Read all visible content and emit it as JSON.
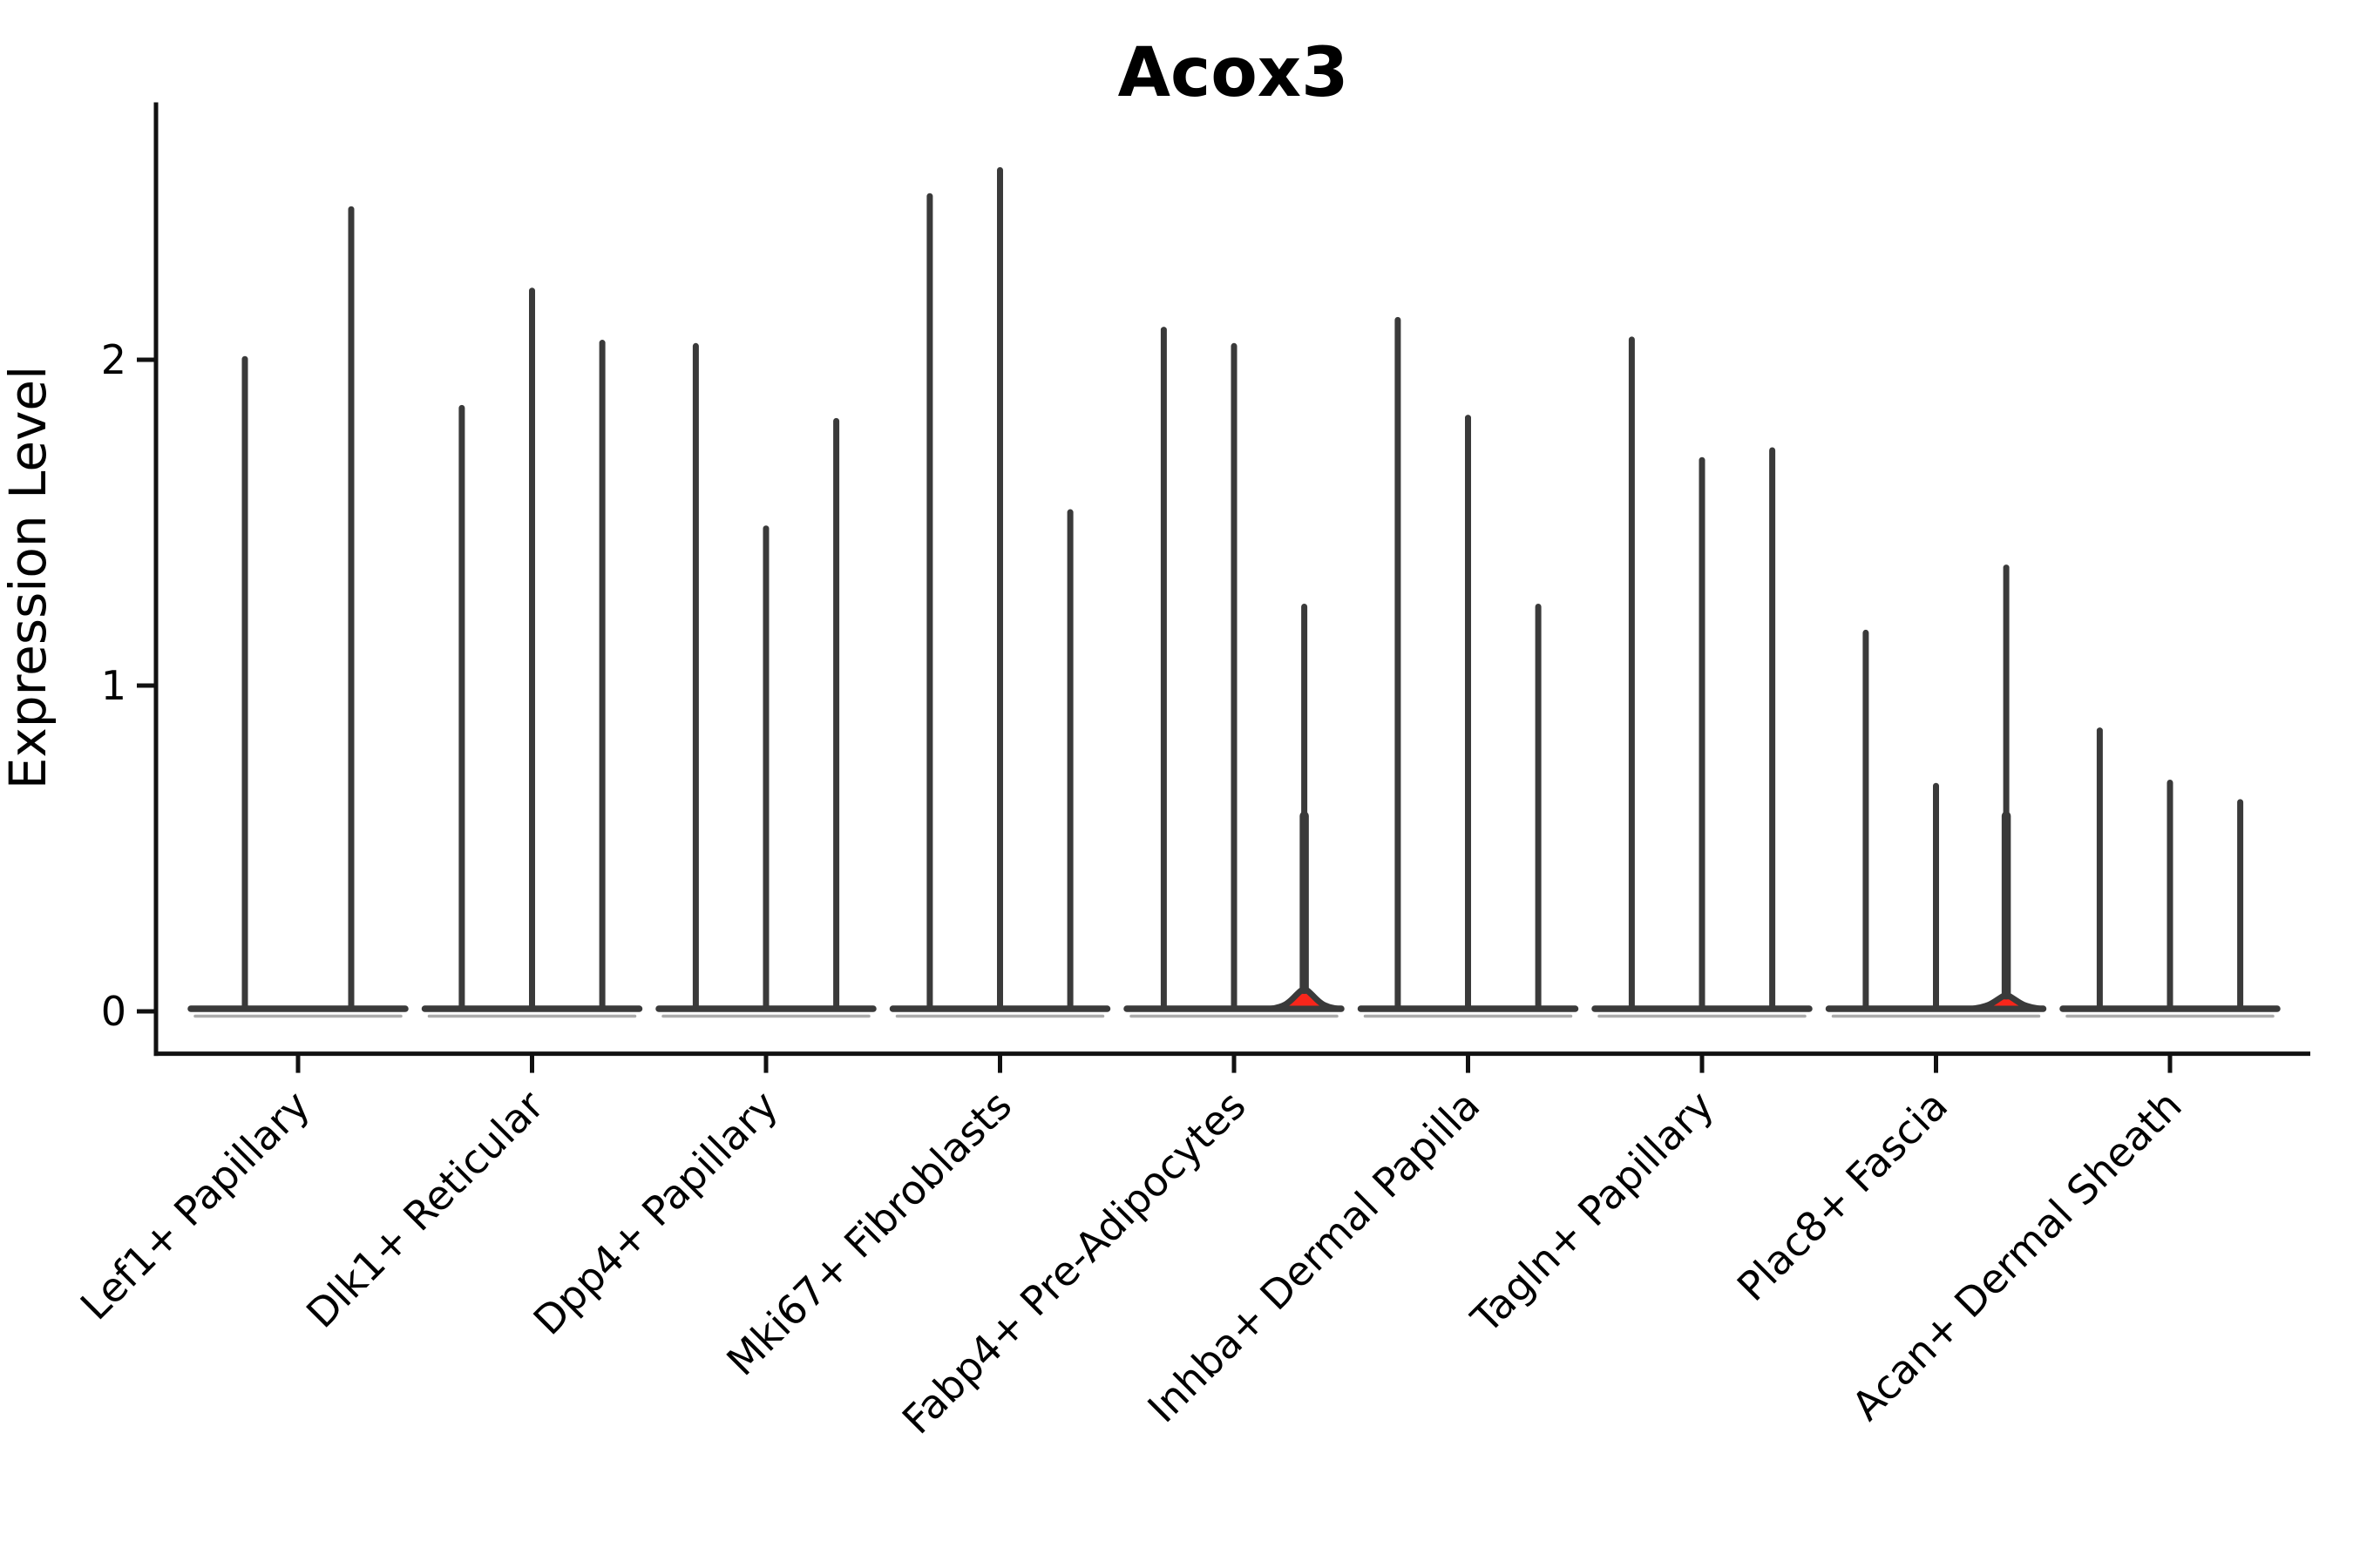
{
  "chart_data": {
    "type": "violin",
    "title": "Acox3",
    "ylabel": "Expression Level",
    "xlabel": "",
    "yticks": [
      0,
      1,
      2
    ],
    "ylim": [
      -0.13,
      2.79
    ],
    "grid": false,
    "legend": false,
    "note": "Seurat-style violin plot; each cluster shows 2-3 very thin violins with nearly all density at 0 (flat base blob) and a thin stem rising to the max expression value. Two violins show a visible red-filled density blob at the bottom.",
    "colors": {
      "violin_outline": "#3A3A3A",
      "highlight_fill": "#F8261B",
      "base_shadow": "#ABABAB",
      "axis": "#111111",
      "text": "#000000"
    },
    "groups": [
      {
        "label": "Lef1+ Papillary",
        "violin_maxima": [
          2.01,
          2.47
        ],
        "highlighted_violin": null
      },
      {
        "label": "Dlk1+ Reticular",
        "violin_maxima": [
          1.86,
          2.22,
          2.06
        ],
        "highlighted_violin": null
      },
      {
        "label": "Dpp4+ Papillary",
        "violin_maxima": [
          2.05,
          1.49,
          1.82
        ],
        "highlighted_violin": null
      },
      {
        "label": "Mki67+ Fibroblasts",
        "violin_maxima": [
          2.51,
          2.59,
          1.54
        ],
        "highlighted_violin": null
      },
      {
        "label": "Fabp4+ Pre-Adipocytes",
        "violin_maxima": [
          2.1,
          2.05,
          1.25
        ],
        "highlighted_violin": 2,
        "highlight_blob_height": 0.055
      },
      {
        "label": "Inhba+ Dermal Papilla",
        "violin_maxima": [
          2.13,
          1.83,
          1.25
        ],
        "highlighted_violin": null
      },
      {
        "label": "Tagln+ Papillary",
        "violin_maxima": [
          2.07,
          1.7,
          1.73
        ],
        "highlighted_violin": null
      },
      {
        "label": "Plac8+ Fascia",
        "violin_maxima": [
          1.17,
          0.7,
          1.37
        ],
        "highlighted_violin": 2,
        "highlight_blob_height": 0.038
      },
      {
        "label": "Acan+ Dermal Sheath",
        "violin_maxima": [
          0.87,
          0.71,
          0.65
        ],
        "highlighted_violin": null
      }
    ]
  }
}
